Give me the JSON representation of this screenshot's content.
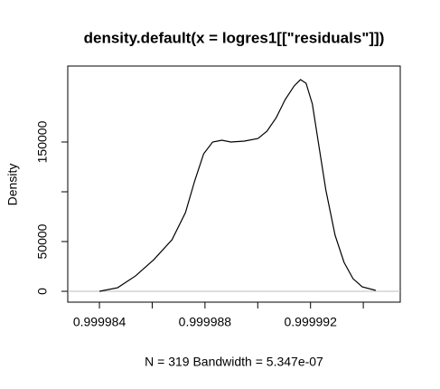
{
  "chart_data": {
    "type": "line",
    "title": "density.default(x = logres1[[\"residuals\"]])",
    "xlabel": "N = 319   Bandwidth = 5.347e-07",
    "ylabel": "Density",
    "xlim": [
      0.9999828,
      0.9999954
    ],
    "ylim": [
      -10909,
      226364
    ],
    "xticks": [
      0.999984,
      {
        "value": 0.999986,
        "label": null
      },
      0.999988,
      {
        "value": 0.99999,
        "label": null
      },
      0.999992,
      {
        "value": 0.999994,
        "label": null
      }
    ],
    "yticks": [
      0,
      50000,
      {
        "value": 100000,
        "label": null
      },
      150000
    ],
    "zero_line": true,
    "series": [
      {
        "color": "#000000",
        "x": [
          0.999984,
          0.99998469,
          0.99998537,
          0.99998606,
          0.99998675,
          0.99998726,
          0.99998761,
          0.99998795,
          0.99998829,
          0.99998864,
          0.99998898,
          0.99998949,
          0.99999001,
          0.99999035,
          0.9999907,
          0.99999104,
          0.99999138,
          0.99999162,
          0.99999183,
          0.99999207,
          0.99999231,
          0.99999258,
          0.99999293,
          0.99999327,
          0.99999361,
          0.99999396,
          0.99999447
        ],
        "values": [
          0,
          3600,
          15500,
          31800,
          51800,
          79100,
          110900,
          138200,
          150000,
          151800,
          150000,
          150900,
          153600,
          160900,
          174500,
          192700,
          206400,
          212700,
          209100,
          188200,
          147300,
          101800,
          56400,
          29100,
          12700,
          4500,
          900
        ]
      }
    ]
  }
}
